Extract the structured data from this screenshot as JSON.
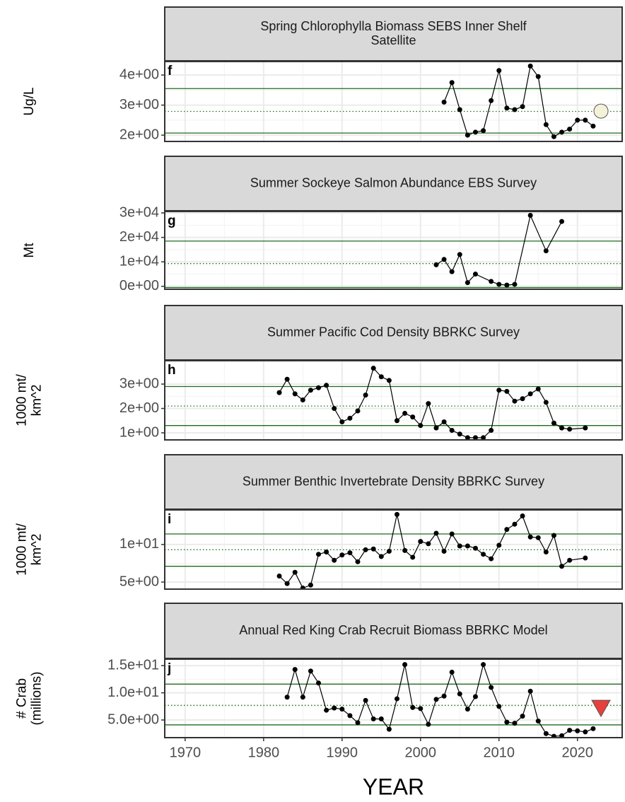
{
  "chart_data": [
    {
      "type": "line",
      "tag": "f",
      "title": [
        "Spring Chlorophylla Biomass SEBS Inner Shelf",
        "Satellite"
      ],
      "ylabel": [
        "Ug/L"
      ],
      "xlim": [
        1967.4,
        2025.7
      ],
      "xticks": [
        1970,
        1980,
        1990,
        2000,
        2010,
        2020
      ],
      "ylim": [
        1.79,
        4.45
      ],
      "yticks": [
        {
          "value": 2,
          "label": "2e+00"
        },
        {
          "value": 3,
          "label": "3e+00"
        },
        {
          "value": 4,
          "label": "4e+00"
        }
      ],
      "grid": true,
      "ref_lines": [
        {
          "value": 3.55,
          "style": "solid",
          "color": "#1e6b1e"
        },
        {
          "value": 2.79,
          "style": "dotted",
          "color": "#1e6b1e"
        },
        {
          "value": 2.07,
          "style": "solid",
          "color": "#1e6b1e"
        }
      ],
      "x": [
        2003,
        2004,
        2005,
        2006,
        2007,
        2008,
        2009,
        2010,
        2011,
        2012,
        2013,
        2014,
        2015,
        2016,
        2017,
        2018,
        2019,
        2020,
        2021,
        2022
      ],
      "values": [
        3.1,
        3.75,
        2.85,
        2.0,
        2.1,
        2.15,
        3.15,
        4.15,
        2.9,
        2.85,
        2.95,
        4.3,
        3.95,
        2.35,
        1.95,
        2.1,
        2.2,
        2.5,
        2.5,
        2.3
      ],
      "color": "#000000",
      "trend_marker": {
        "x": 2023,
        "y": 2.8,
        "shape": "circle",
        "color": "#f3f1d8"
      }
    },
    {
      "type": "line",
      "tag": "g",
      "title": [
        "Summer Sockeye Salmon Abundance EBS Survey"
      ],
      "ylabel": [
        "Mt"
      ],
      "xlim": [
        1967.4,
        2025.7
      ],
      "xticks": [
        1970,
        1980,
        1990,
        2000,
        2010,
        2020
      ],
      "ylim": [
        -1200,
        30600
      ],
      "yticks": [
        {
          "value": 0,
          "label": "0e+00"
        },
        {
          "value": 10000,
          "label": "1e+04"
        },
        {
          "value": 20000,
          "label": "2e+04"
        },
        {
          "value": 30000,
          "label": "3e+04"
        }
      ],
      "grid": true,
      "ref_lines": [
        {
          "value": 18500,
          "style": "solid",
          "color": "#1e6b1e"
        },
        {
          "value": 9300,
          "style": "dotted",
          "color": "#1e6b1e"
        },
        {
          "value": -500,
          "style": "solid",
          "color": "#1e6b1e"
        }
      ],
      "x": [
        2002,
        2003,
        2004,
        2005,
        2006,
        2007,
        2009,
        2010,
        2011,
        2012,
        2014,
        2016,
        2018
      ],
      "values": [
        8800,
        11000,
        6000,
        13000,
        1500,
        5000,
        2000,
        800,
        500,
        800,
        29000,
        14500,
        26500
      ],
      "color": "#000000"
    },
    {
      "type": "line",
      "tag": "h",
      "title": [
        "Summer Pacific Cod Density BBRKC Survey"
      ],
      "ylabel": [
        "1000 mt/",
        "km^2"
      ],
      "xlim": [
        1967.4,
        2025.7
      ],
      "xticks": [
        1970,
        1980,
        1990,
        2000,
        2010,
        2020
      ],
      "ylim": [
        0.71,
        3.96
      ],
      "yticks": [
        {
          "value": 1,
          "label": "1e+00"
        },
        {
          "value": 2,
          "label": "2e+00"
        },
        {
          "value": 3,
          "label": "3e+00"
        }
      ],
      "grid": true,
      "ref_lines": [
        {
          "value": 2.9,
          "style": "solid",
          "color": "#1e6b1e"
        },
        {
          "value": 2.1,
          "style": "dotted",
          "color": "#1e6b1e"
        },
        {
          "value": 1.3,
          "style": "solid",
          "color": "#1e6b1e"
        }
      ],
      "x": [
        1982,
        1983,
        1984,
        1985,
        1986,
        1987,
        1988,
        1989,
        1990,
        1991,
        1992,
        1993,
        1994,
        1995,
        1996,
        1997,
        1998,
        1999,
        2000,
        2001,
        2002,
        2003,
        2004,
        2005,
        2006,
        2007,
        2008,
        2009,
        2010,
        2011,
        2012,
        2013,
        2014,
        2015,
        2016,
        2017,
        2018,
        2019,
        2021
      ],
      "values": [
        2.65,
        3.2,
        2.6,
        2.35,
        2.75,
        2.85,
        2.95,
        2.0,
        1.45,
        1.6,
        1.9,
        2.55,
        3.65,
        3.3,
        3.15,
        1.5,
        1.8,
        1.65,
        1.3,
        2.2,
        1.2,
        1.45,
        1.1,
        0.95,
        0.8,
        0.8,
        0.8,
        1.1,
        2.75,
        2.7,
        2.3,
        2.4,
        2.6,
        2.8,
        2.25,
        1.4,
        1.2,
        1.15,
        1.2
      ],
      "color": "#000000"
    },
    {
      "type": "line",
      "tag": "i",
      "title": [
        "Summer Benthic Invertebrate Density BBRKC Survey"
      ],
      "ylabel": [
        "1000 mt/",
        "km^2"
      ],
      "xlim": [
        1967.4,
        2025.7
      ],
      "xticks": [
        1970,
        1980,
        1990,
        2000,
        2010,
        2020
      ],
      "ylim": [
        4.06,
        14.6
      ],
      "yticks": [
        {
          "value": 5,
          "label": "5e+00"
        },
        {
          "value": 10,
          "label": "1e+01"
        }
      ],
      "grid": true,
      "ref_lines": [
        {
          "value": 11.4,
          "style": "solid",
          "color": "#1e6b1e"
        },
        {
          "value": 9.3,
          "style": "dotted",
          "color": "#1e6b1e"
        },
        {
          "value": 7.1,
          "style": "solid",
          "color": "#1e6b1e"
        }
      ],
      "x": [
        1982,
        1983,
        1984,
        1985,
        1986,
        1987,
        1988,
        1989,
        1990,
        1991,
        1992,
        1993,
        1994,
        1995,
        1996,
        1997,
        1998,
        1999,
        2000,
        2001,
        2002,
        2003,
        2004,
        2005,
        2006,
        2007,
        2008,
        2009,
        2010,
        2011,
        2012,
        2013,
        2014,
        2015,
        2016,
        2017,
        2018,
        2019,
        2021
      ],
      "values": [
        5.8,
        4.8,
        6.3,
        4.2,
        4.6,
        8.7,
        9.0,
        7.9,
        8.6,
        8.9,
        7.7,
        9.3,
        9.4,
        8.4,
        9.1,
        14.0,
        9.2,
        8.3,
        10.4,
        10.1,
        11.5,
        9.1,
        11.4,
        9.8,
        9.8,
        9.5,
        8.7,
        8.1,
        9.9,
        12.0,
        12.7,
        13.8,
        11.0,
        10.9,
        9.0,
        11.2,
        7.1,
        7.9,
        8.2
      ],
      "color": "#000000"
    },
    {
      "type": "line",
      "tag": "j",
      "title": [
        "Annual Red King Crab Recruit Biomass BBRKC Model"
      ],
      "ylabel": [
        "# Crab",
        "(millions)"
      ],
      "xlabel": "YEAR",
      "xlim": [
        1967.4,
        2025.7
      ],
      "xticks": [
        1970,
        1980,
        1990,
        2000,
        2010,
        2020
      ],
      "ylim": [
        1.75,
        16.2
      ],
      "yticks": [
        {
          "value": 5,
          "label": "5.0e+00"
        },
        {
          "value": 10,
          "label": "1.0e+01"
        },
        {
          "value": 15,
          "label": "1.5e+01"
        }
      ],
      "grid": true,
      "ref_lines": [
        {
          "value": 11.6,
          "style": "solid",
          "color": "#1e6b1e"
        },
        {
          "value": 7.7,
          "style": "dotted",
          "color": "#1e6b1e"
        },
        {
          "value": 4.1,
          "style": "solid",
          "color": "#1e6b1e"
        }
      ],
      "x": [
        1983,
        1984,
        1985,
        1986,
        1987,
        1988,
        1989,
        1990,
        1991,
        1992,
        1993,
        1994,
        1995,
        1996,
        1997,
        1998,
        1999,
        2000,
        2001,
        2002,
        2003,
        2004,
        2005,
        2006,
        2007,
        2008,
        2009,
        2010,
        2011,
        2012,
        2013,
        2014,
        2015,
        2016,
        2017,
        2018,
        2019,
        2020,
        2021,
        2022
      ],
      "values": [
        9.2,
        14.3,
        9.2,
        14.0,
        11.8,
        6.8,
        7.2,
        7.0,
        5.8,
        4.5,
        8.6,
        5.2,
        5.2,
        3.3,
        8.9,
        15.2,
        7.3,
        7.1,
        4.2,
        8.8,
        9.4,
        13.8,
        9.8,
        7.0,
        9.3,
        15.2,
        11.0,
        7.5,
        4.6,
        4.4,
        5.7,
        10.3,
        4.8,
        2.5,
        2.0,
        2.1,
        3.1,
        3.0,
        2.8,
        3.4
      ],
      "color": "#000000",
      "trend_marker": {
        "x": 2023,
        "y": 7.2,
        "shape": "triangle-down",
        "color": "#e8403c"
      }
    }
  ]
}
